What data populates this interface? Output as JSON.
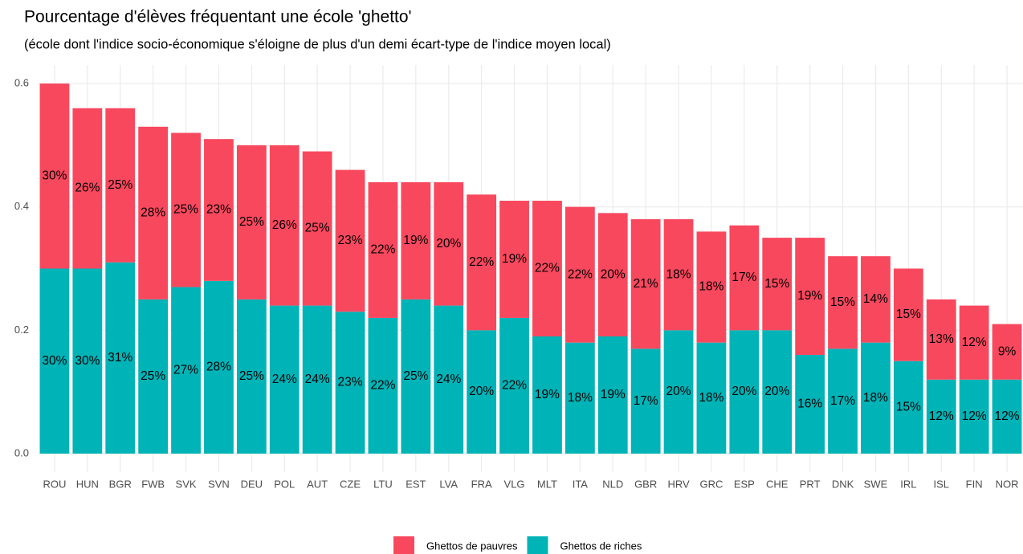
{
  "chart_data": {
    "type": "stacked_bar",
    "title": "Pourcentage d'élèves fréquentant une école 'ghetto'",
    "subtitle": "(école dont l'indice socio-économique s'éloigne de plus d'un demi écart-type de l'indice moyen local)",
    "categories": [
      "ROU",
      "HUN",
      "BGR",
      "FWB",
      "SVK",
      "SVN",
      "DEU",
      "POL",
      "AUT",
      "CZE",
      "LTU",
      "EST",
      "LVA",
      "FRA",
      "VLG",
      "MLT",
      "ITA",
      "NLD",
      "GBR",
      "HRV",
      "GRC",
      "ESP",
      "CHE",
      "PRT",
      "DNK",
      "SWE",
      "IRL",
      "ISL",
      "FIN",
      "NOR"
    ],
    "series": [
      {
        "name": "Ghettos de pauvres",
        "color": "#f8485e",
        "values": [
          0.3,
          0.26,
          0.25,
          0.28,
          0.25,
          0.23,
          0.25,
          0.26,
          0.25,
          0.23,
          0.22,
          0.19,
          0.2,
          0.22,
          0.19,
          0.22,
          0.22,
          0.2,
          0.21,
          0.18,
          0.18,
          0.17,
          0.15,
          0.19,
          0.15,
          0.14,
          0.15,
          0.13,
          0.12,
          0.09
        ],
        "value_labels": [
          "30%",
          "26%",
          "25%",
          "28%",
          "25%",
          "23%",
          "25%",
          "26%",
          "25%",
          "23%",
          "22%",
          "19%",
          "20%",
          "22%",
          "19%",
          "22%",
          "22%",
          "20%",
          "21%",
          "18%",
          "18%",
          "17%",
          "15%",
          "19%",
          "15%",
          "14%",
          "15%",
          "13%",
          "12%",
          "9%"
        ]
      },
      {
        "name": "Ghettos de riches",
        "color": "#00b3b7",
        "values": [
          0.3,
          0.3,
          0.31,
          0.25,
          0.27,
          0.28,
          0.25,
          0.24,
          0.24,
          0.23,
          0.22,
          0.25,
          0.24,
          0.2,
          0.22,
          0.19,
          0.18,
          0.19,
          0.17,
          0.2,
          0.18,
          0.2,
          0.2,
          0.16,
          0.17,
          0.18,
          0.15,
          0.12,
          0.12,
          0.12
        ],
        "value_labels": [
          "30%",
          "30%",
          "31%",
          "25%",
          "27%",
          "28%",
          "25%",
          "24%",
          "24%",
          "23%",
          "22%",
          "25%",
          "24%",
          "20%",
          "22%",
          "19%",
          "18%",
          "19%",
          "17%",
          "20%",
          "18%",
          "20%",
          "20%",
          "16%",
          "17%",
          "18%",
          "15%",
          "12%",
          "12%",
          "12%"
        ]
      }
    ],
    "ylim": [
      -0.03,
      0.63
    ],
    "yticks": [
      {
        "value": 0,
        "label": "0.0"
      },
      0.2,
      0.4,
      0.6
    ],
    "grid": true,
    "legend": "bottom"
  }
}
